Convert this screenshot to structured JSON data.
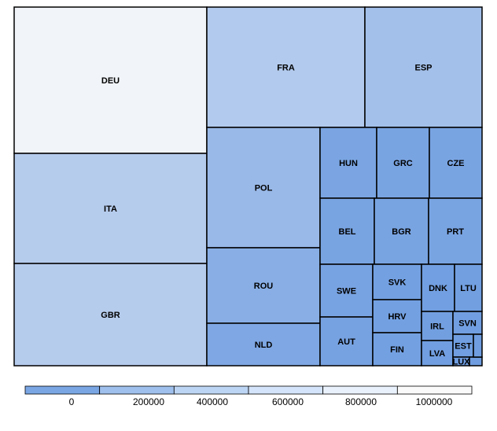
{
  "chart_data": {
    "type": "treemap",
    "title": "",
    "color_scale": {
      "min_color": "#6f9de0",
      "max_color": "#fafafa",
      "bands": [
        "#7aa6e4",
        "#9fc0ec",
        "#bdd5f5",
        "#d4e4fa",
        "#e9f1fc",
        "#fafafa"
      ],
      "ticks": [
        "0",
        "200000",
        "400000",
        "600000",
        "800000",
        "1000000"
      ]
    },
    "cells": [
      {
        "label": "DEU",
        "value": 1030000
      },
      {
        "label": "ITA",
        "value": 560000
      },
      {
        "label": "GBR",
        "value": 560000
      },
      {
        "label": "FRA",
        "value": 530000
      },
      {
        "label": "ESP",
        "value": 410000
      },
      {
        "label": "POL",
        "value": 330000
      },
      {
        "label": "ROU",
        "value": 200000
      },
      {
        "label": "NLD",
        "value": 120000
      },
      {
        "label": "HUN",
        "value": 90000
      },
      {
        "label": "GRC",
        "value": 80000
      },
      {
        "label": "CZE",
        "value": 80000
      },
      {
        "label": "BEL",
        "value": 80000
      },
      {
        "label": "BGR",
        "value": 80000
      },
      {
        "label": "PRT",
        "value": 80000
      },
      {
        "label": "SWE",
        "value": 70000
      },
      {
        "label": "AUT",
        "value": 60000
      },
      {
        "label": "SVK",
        "value": 30000
      },
      {
        "label": "HRV",
        "value": 30000
      },
      {
        "label": "FIN",
        "value": 30000
      },
      {
        "label": "DNK",
        "value": 25000
      },
      {
        "label": "LTU",
        "value": 20000
      },
      {
        "label": "IRL",
        "value": 20000
      },
      {
        "label": "SVN",
        "value": 15000
      },
      {
        "label": "LVA",
        "value": 15000
      },
      {
        "label": "EST",
        "value": 10000
      },
      {
        "label": "LUX",
        "value": 3000
      },
      {
        "label": "",
        "value": 3000
      }
    ]
  }
}
